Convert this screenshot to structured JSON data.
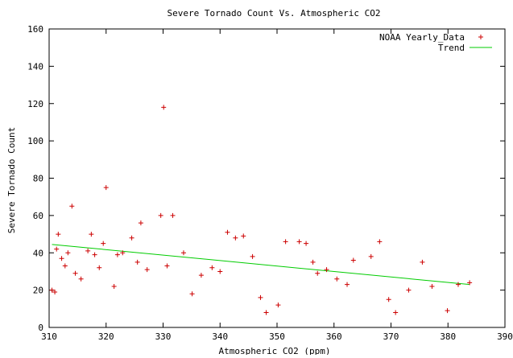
{
  "chart_data": {
    "type": "scatter",
    "title": "Severe Tornado Count Vs. Atmospheric CO2",
    "xlabel": "Atmospheric CO2 (ppm)",
    "ylabel": "Severe Tornado Count",
    "xlim": [
      310,
      390
    ],
    "ylim": [
      0,
      160
    ],
    "x_ticks": [
      310,
      320,
      330,
      340,
      350,
      360,
      370,
      380,
      390
    ],
    "y_ticks": [
      0,
      20,
      40,
      60,
      80,
      100,
      120,
      140,
      160
    ],
    "grid": false,
    "legend_position": "top-right",
    "series": [
      {
        "name": "NOAA Yearly_Data",
        "kind": "scatter",
        "marker": "plus",
        "color": "#cc0000",
        "points": [
          [
            310.5,
            20
          ],
          [
            311.0,
            19
          ],
          [
            311.3,
            42
          ],
          [
            311.6,
            50
          ],
          [
            312.2,
            37
          ],
          [
            312.8,
            33
          ],
          [
            313.3,
            40
          ],
          [
            314.0,
            65
          ],
          [
            314.6,
            29
          ],
          [
            315.6,
            26
          ],
          [
            316.8,
            41
          ],
          [
            317.4,
            50
          ],
          [
            318.0,
            39
          ],
          [
            318.8,
            32
          ],
          [
            319.5,
            45
          ],
          [
            320.0,
            75
          ],
          [
            321.4,
            22
          ],
          [
            322.0,
            39
          ],
          [
            322.9,
            40
          ],
          [
            324.5,
            48
          ],
          [
            325.5,
            35
          ],
          [
            326.1,
            56
          ],
          [
            327.2,
            31
          ],
          [
            329.6,
            60
          ],
          [
            330.1,
            118
          ],
          [
            330.7,
            33
          ],
          [
            331.7,
            60
          ],
          [
            333.6,
            40
          ],
          [
            335.1,
            18
          ],
          [
            336.7,
            28
          ],
          [
            338.6,
            32
          ],
          [
            340.0,
            30
          ],
          [
            341.3,
            51
          ],
          [
            342.7,
            48
          ],
          [
            344.1,
            49
          ],
          [
            345.7,
            38
          ],
          [
            347.1,
            16
          ],
          [
            348.1,
            8
          ],
          [
            350.2,
            12
          ],
          [
            351.5,
            46
          ],
          [
            353.9,
            46
          ],
          [
            355.1,
            45
          ],
          [
            356.3,
            35
          ],
          [
            357.1,
            29
          ],
          [
            358.7,
            31
          ],
          [
            360.5,
            26
          ],
          [
            362.3,
            23
          ],
          [
            363.4,
            36
          ],
          [
            366.5,
            38
          ],
          [
            368.0,
            46
          ],
          [
            369.6,
            15
          ],
          [
            370.8,
            8
          ],
          [
            373.1,
            20
          ],
          [
            375.5,
            35
          ],
          [
            377.2,
            22
          ],
          [
            379.9,
            9
          ],
          [
            381.8,
            23
          ],
          [
            383.8,
            24
          ]
        ]
      },
      {
        "name": "Trend",
        "kind": "line",
        "color": "#00cc00",
        "points": [
          [
            310.5,
            44.5
          ],
          [
            383.8,
            23
          ]
        ]
      }
    ]
  }
}
